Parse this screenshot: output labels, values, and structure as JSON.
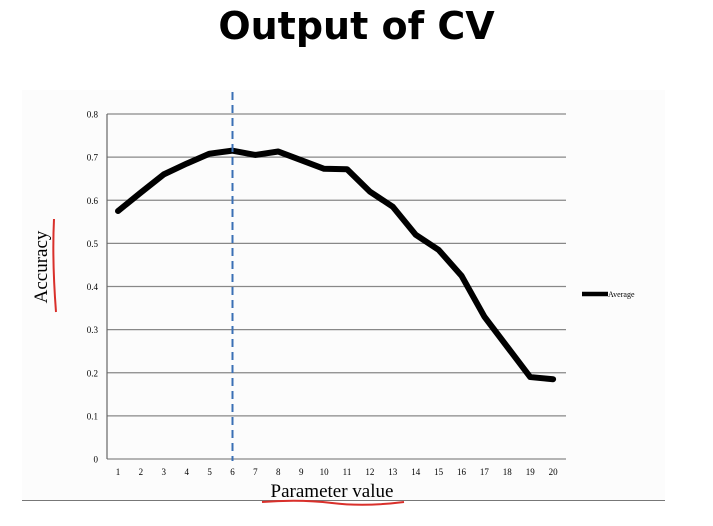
{
  "slide": {
    "title": "Output of CV"
  },
  "chart_data": {
    "type": "line",
    "xlabel": "Parameter value",
    "ylabel": "Accuracy",
    "x": [
      1,
      2,
      3,
      4,
      5,
      6,
      7,
      8,
      9,
      10,
      11,
      12,
      13,
      14,
      15,
      16,
      17,
      18,
      19,
      20
    ],
    "series": [
      {
        "name": "Average",
        "values": [
          0.575,
          0.618,
          0.66,
          0.685,
          0.708,
          0.715,
          0.705,
          0.713,
          0.693,
          0.673,
          0.672,
          0.62,
          0.585,
          0.52,
          0.485,
          0.425,
          0.33,
          0.26,
          0.19,
          0.185
        ]
      }
    ],
    "ylim": [
      0,
      0.8
    ],
    "yticks": [
      "0",
      "0.1",
      "0.2",
      "0.3",
      "0.4",
      "0.5",
      "0.6",
      "0.7",
      "0.8"
    ],
    "xticks": [
      "1",
      "2",
      "3",
      "4",
      "5",
      "6",
      "7",
      "8",
      "9",
      "10",
      "11",
      "12",
      "13",
      "14",
      "15",
      "16",
      "17",
      "18",
      "19",
      "20"
    ],
    "vline_x": 6,
    "grid": true,
    "legend_position": "right",
    "colors": {
      "line": "#000000",
      "vline": "#3a6fb5",
      "grid": "#888888",
      "annotation_underline": "#d9302b"
    }
  }
}
